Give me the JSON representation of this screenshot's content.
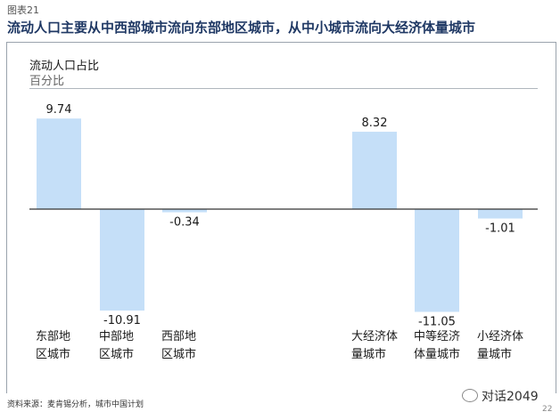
{
  "figure_label": "图表21",
  "headline": "流动人口主要从中西部城市流向东部地区城市，从中小城市流向大经济体量城市",
  "source": "资料来源：麦肯锡分析，城市中国计划",
  "brand": "对话2049",
  "page_number": "22",
  "chart_data": {
    "type": "bar",
    "title": "流动人口占比",
    "subtitle": "百分比",
    "categories": [
      [
        "东部地",
        "区城市"
      ],
      [
        "中部地",
        "区城市"
      ],
      [
        "西部地",
        "区城市"
      ],
      [
        "大经济体",
        "量城市"
      ],
      [
        "中等经济",
        "体量城市"
      ],
      [
        "小经济体",
        "量城市"
      ]
    ],
    "values": [
      9.74,
      -10.91,
      -0.34,
      8.32,
      -11.05,
      -1.01
    ],
    "value_labels": [
      "9.74",
      "-10.91",
      "-0.34",
      "8.32",
      "-11.05",
      "-1.01"
    ],
    "groups": [
      [
        0,
        1,
        2
      ],
      [
        3,
        4,
        5
      ]
    ],
    "bar_color": "#c5dff8",
    "axis_color": "#333333",
    "grid": false,
    "legend": "none"
  }
}
